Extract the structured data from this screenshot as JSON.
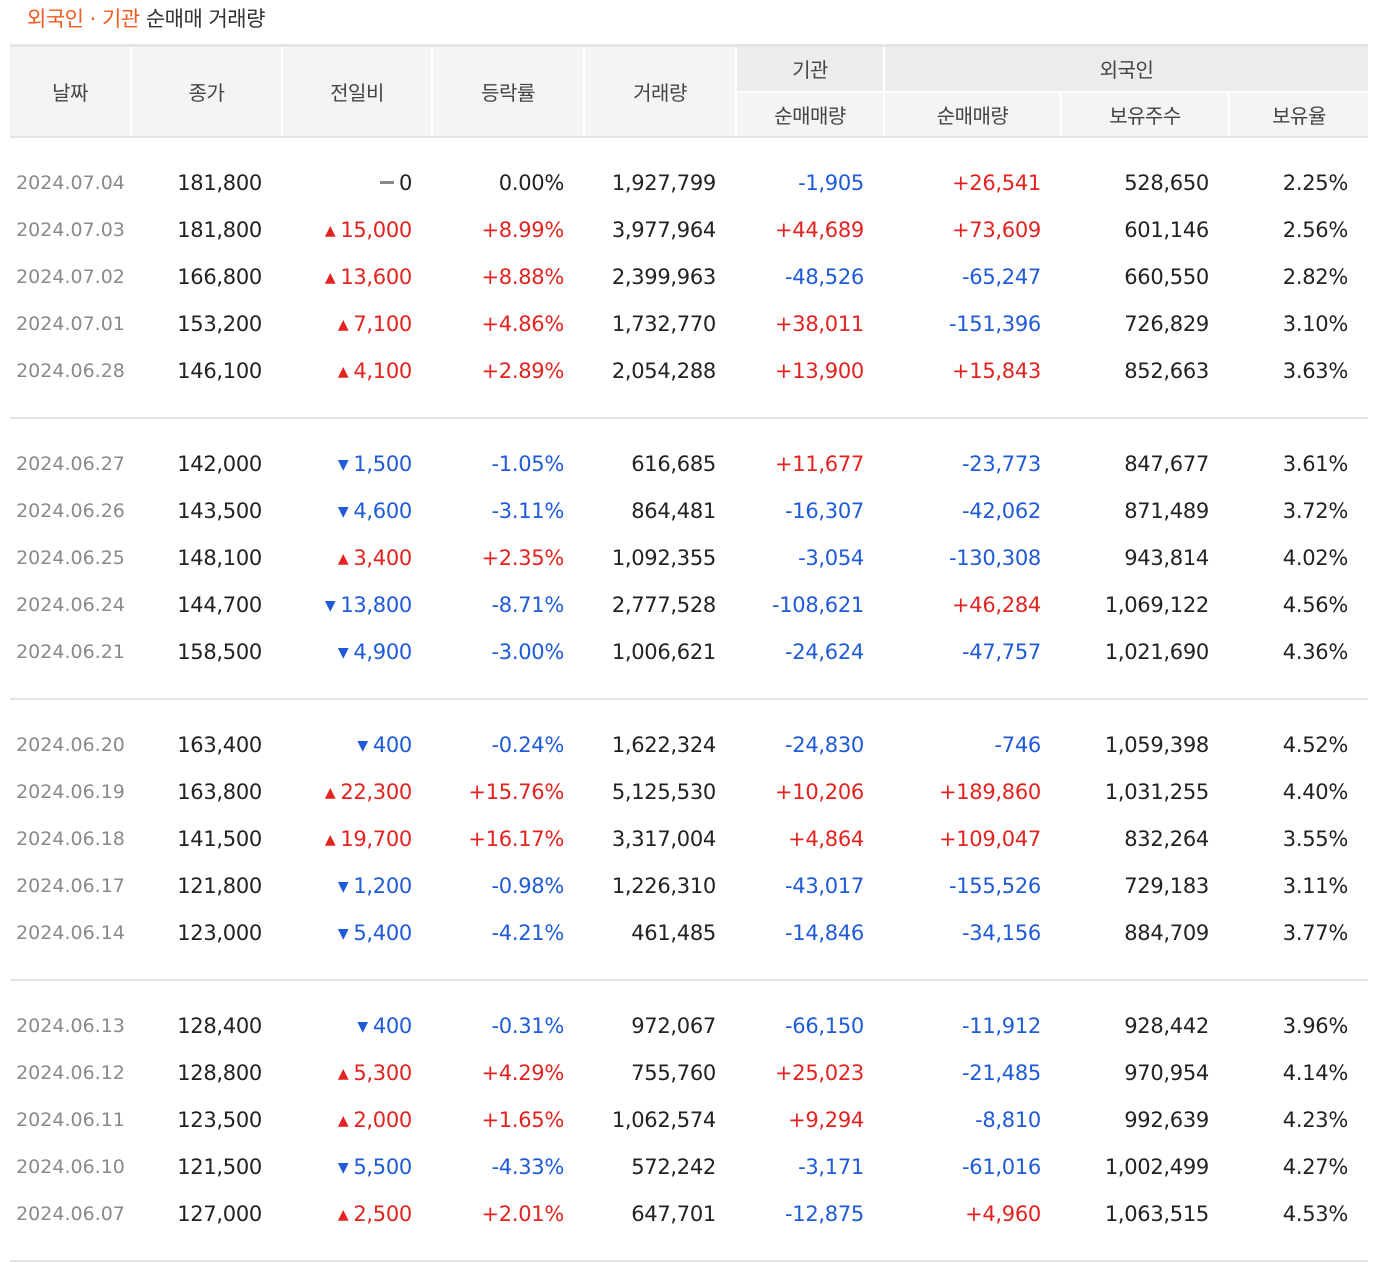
{
  "title": {
    "accent": "외국인 · 기관",
    "rest": "순매매 거래량"
  },
  "headers": {
    "date": "날짜",
    "close": "종가",
    "change": "전일비",
    "rate": "등락률",
    "volume": "거래량",
    "institution_group": "기관",
    "foreign_group": "외국인",
    "inst_net": "순매매량",
    "foreign_net": "순매매량",
    "foreign_holdings": "보유주수",
    "foreign_ratio": "보유율"
  },
  "colors": {
    "accent": "#f05a22",
    "up": "#e3231f",
    "down": "#1f5bd8",
    "header_bg": "#f4f4f4"
  },
  "icons": {
    "up": "triangle-up-icon",
    "down": "triangle-down-icon",
    "flat": "dash-icon"
  },
  "groups": [
    [
      {
        "date": "2024.07.04",
        "close": "181,800",
        "dir": "flat",
        "change": "0",
        "rate": "0.00%",
        "volume": "1,927,799",
        "inst": "-1,905",
        "foreign": "+26,541",
        "holdings": "528,650",
        "ratio": "2.25%"
      },
      {
        "date": "2024.07.03",
        "close": "181,800",
        "dir": "up",
        "change": "15,000",
        "rate": "+8.99%",
        "volume": "3,977,964",
        "inst": "+44,689",
        "foreign": "+73,609",
        "holdings": "601,146",
        "ratio": "2.56%"
      },
      {
        "date": "2024.07.02",
        "close": "166,800",
        "dir": "up",
        "change": "13,600",
        "rate": "+8.88%",
        "volume": "2,399,963",
        "inst": "-48,526",
        "foreign": "-65,247",
        "holdings": "660,550",
        "ratio": "2.82%"
      },
      {
        "date": "2024.07.01",
        "close": "153,200",
        "dir": "up",
        "change": "7,100",
        "rate": "+4.86%",
        "volume": "1,732,770",
        "inst": "+38,011",
        "foreign": "-151,396",
        "holdings": "726,829",
        "ratio": "3.10%"
      },
      {
        "date": "2024.06.28",
        "close": "146,100",
        "dir": "up",
        "change": "4,100",
        "rate": "+2.89%",
        "volume": "2,054,288",
        "inst": "+13,900",
        "foreign": "+15,843",
        "holdings": "852,663",
        "ratio": "3.63%"
      }
    ],
    [
      {
        "date": "2024.06.27",
        "close": "142,000",
        "dir": "down",
        "change": "1,500",
        "rate": "-1.05%",
        "volume": "616,685",
        "inst": "+11,677",
        "foreign": "-23,773",
        "holdings": "847,677",
        "ratio": "3.61%"
      },
      {
        "date": "2024.06.26",
        "close": "143,500",
        "dir": "down",
        "change": "4,600",
        "rate": "-3.11%",
        "volume": "864,481",
        "inst": "-16,307",
        "foreign": "-42,062",
        "holdings": "871,489",
        "ratio": "3.72%"
      },
      {
        "date": "2024.06.25",
        "close": "148,100",
        "dir": "up",
        "change": "3,400",
        "rate": "+2.35%",
        "volume": "1,092,355",
        "inst": "-3,054",
        "foreign": "-130,308",
        "holdings": "943,814",
        "ratio": "4.02%"
      },
      {
        "date": "2024.06.24",
        "close": "144,700",
        "dir": "down",
        "change": "13,800",
        "rate": "-8.71%",
        "volume": "2,777,528",
        "inst": "-108,621",
        "foreign": "+46,284",
        "holdings": "1,069,122",
        "ratio": "4.56%"
      },
      {
        "date": "2024.06.21",
        "close": "158,500",
        "dir": "down",
        "change": "4,900",
        "rate": "-3.00%",
        "volume": "1,006,621",
        "inst": "-24,624",
        "foreign": "-47,757",
        "holdings": "1,021,690",
        "ratio": "4.36%"
      }
    ],
    [
      {
        "date": "2024.06.20",
        "close": "163,400",
        "dir": "down",
        "change": "400",
        "rate": "-0.24%",
        "volume": "1,622,324",
        "inst": "-24,830",
        "foreign": "-746",
        "holdings": "1,059,398",
        "ratio": "4.52%"
      },
      {
        "date": "2024.06.19",
        "close": "163,800",
        "dir": "up",
        "change": "22,300",
        "rate": "+15.76%",
        "volume": "5,125,530",
        "inst": "+10,206",
        "foreign": "+189,860",
        "holdings": "1,031,255",
        "ratio": "4.40%"
      },
      {
        "date": "2024.06.18",
        "close": "141,500",
        "dir": "up",
        "change": "19,700",
        "rate": "+16.17%",
        "volume": "3,317,004",
        "inst": "+4,864",
        "foreign": "+109,047",
        "holdings": "832,264",
        "ratio": "3.55%"
      },
      {
        "date": "2024.06.17",
        "close": "121,800",
        "dir": "down",
        "change": "1,200",
        "rate": "-0.98%",
        "volume": "1,226,310",
        "inst": "-43,017",
        "foreign": "-155,526",
        "holdings": "729,183",
        "ratio": "3.11%"
      },
      {
        "date": "2024.06.14",
        "close": "123,000",
        "dir": "down",
        "change": "5,400",
        "rate": "-4.21%",
        "volume": "461,485",
        "inst": "-14,846",
        "foreign": "-34,156",
        "holdings": "884,709",
        "ratio": "3.77%"
      }
    ],
    [
      {
        "date": "2024.06.13",
        "close": "128,400",
        "dir": "down",
        "change": "400",
        "rate": "-0.31%",
        "volume": "972,067",
        "inst": "-66,150",
        "foreign": "-11,912",
        "holdings": "928,442",
        "ratio": "3.96%"
      },
      {
        "date": "2024.06.12",
        "close": "128,800",
        "dir": "up",
        "change": "5,300",
        "rate": "+4.29%",
        "volume": "755,760",
        "inst": "+25,023",
        "foreign": "-21,485",
        "holdings": "970,954",
        "ratio": "4.14%"
      },
      {
        "date": "2024.06.11",
        "close": "123,500",
        "dir": "up",
        "change": "2,000",
        "rate": "+1.65%",
        "volume": "1,062,574",
        "inst": "+9,294",
        "foreign": "-8,810",
        "holdings": "992,639",
        "ratio": "4.23%"
      },
      {
        "date": "2024.06.10",
        "close": "121,500",
        "dir": "down",
        "change": "5,500",
        "rate": "-4.33%",
        "volume": "572,242",
        "inst": "-3,171",
        "foreign": "-61,016",
        "holdings": "1,002,499",
        "ratio": "4.27%"
      },
      {
        "date": "2024.06.07",
        "close": "127,000",
        "dir": "up",
        "change": "2,500",
        "rate": "+2.01%",
        "volume": "647,701",
        "inst": "-12,875",
        "foreign": "+4,960",
        "holdings": "1,063,515",
        "ratio": "4.53%"
      }
    ]
  ]
}
